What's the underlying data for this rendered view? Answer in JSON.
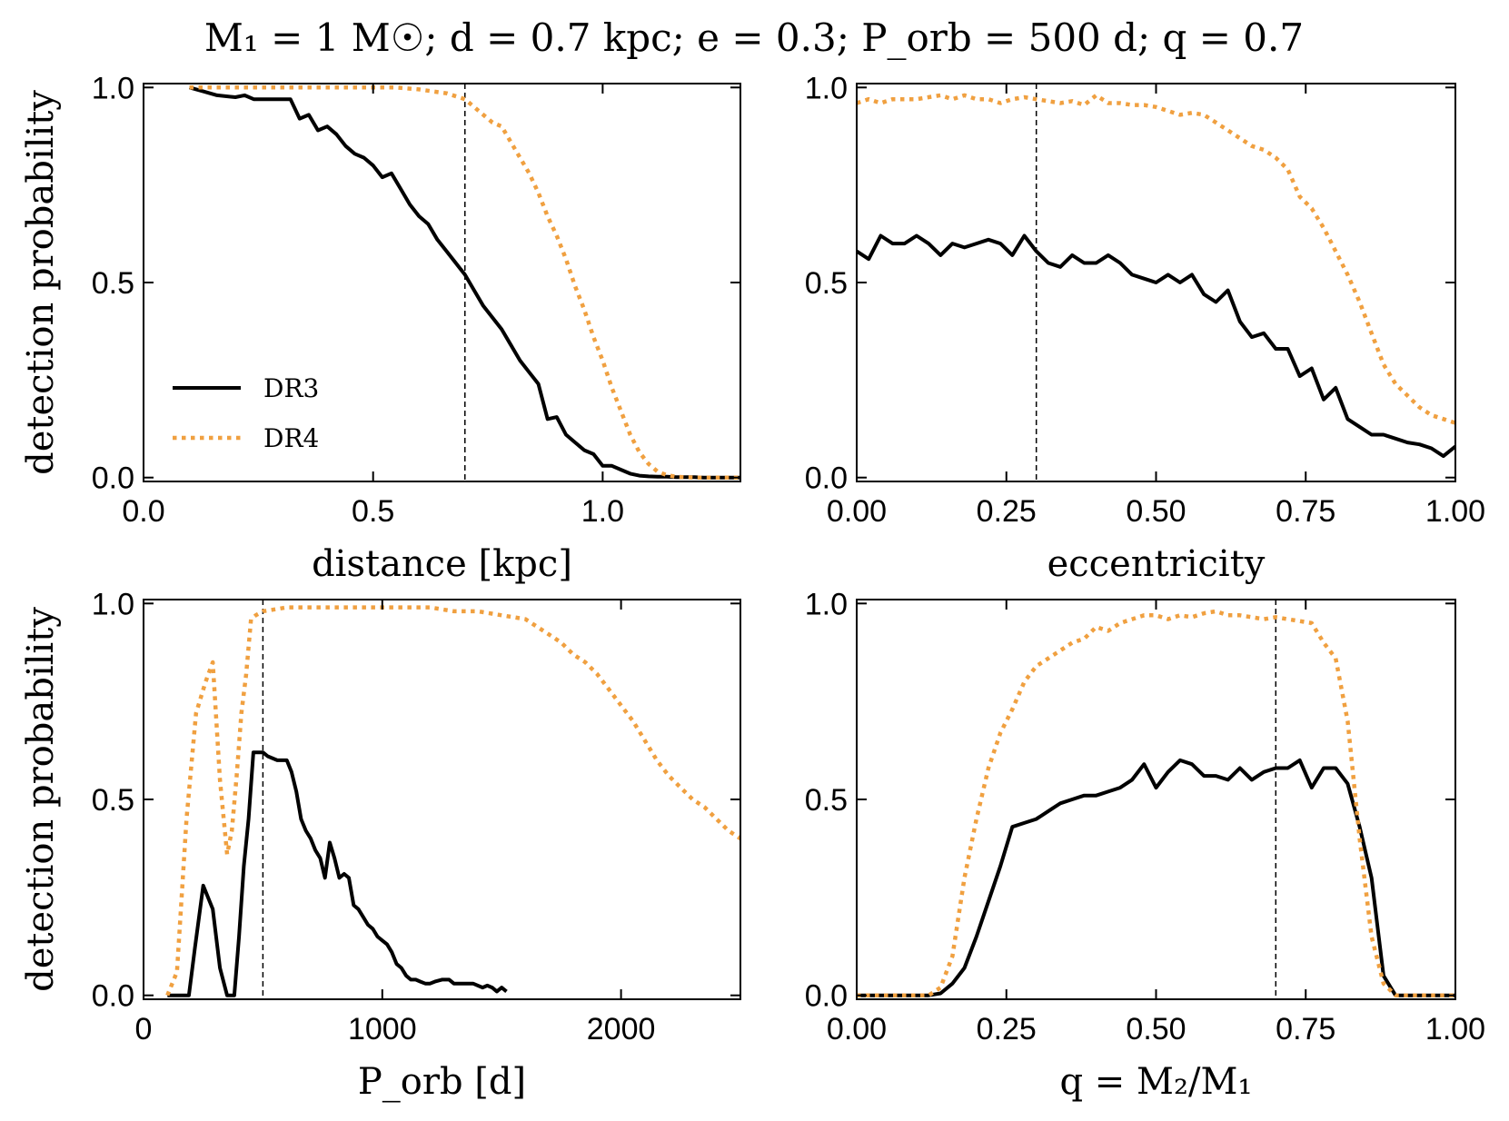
{
  "figure_title": "M₁ = 1 M☉;  d = 0.7 kpc;  e = 0.3;  P_orb = 500 d;  q = 0.7",
  "colors": {
    "dr3": "#000000",
    "dr4": "#f0a040",
    "marker": "#000000"
  },
  "legend": {
    "dr3": "DR3",
    "dr4": "DR4"
  },
  "chart_data": [
    {
      "type": "line",
      "xlabel": "distance [kpc]",
      "ylabel": "detection probability",
      "xlim": [
        0.0,
        1.3
      ],
      "ylim": [
        -0.01,
        1.01
      ],
      "xticks": [
        0.0,
        0.5,
        1.0
      ],
      "xtick_labels": [
        "0.0",
        "0.5",
        "1.0"
      ],
      "yticks": [
        0.0,
        0.5,
        1.0
      ],
      "ytick_labels": [
        "0.0",
        "0.5",
        "1.0"
      ],
      "vline": 0.7,
      "legend_location": "lower-left",
      "series": [
        {
          "name": "DR3",
          "style": "solid",
          "x": [
            0.1,
            0.13,
            0.16,
            0.2,
            0.22,
            0.24,
            0.26,
            0.28,
            0.3,
            0.32,
            0.34,
            0.36,
            0.38,
            0.4,
            0.42,
            0.44,
            0.46,
            0.48,
            0.5,
            0.52,
            0.54,
            0.56,
            0.58,
            0.6,
            0.62,
            0.64,
            0.66,
            0.68,
            0.7,
            0.72,
            0.74,
            0.76,
            0.78,
            0.8,
            0.82,
            0.84,
            0.86,
            0.88,
            0.9,
            0.92,
            0.94,
            0.96,
            0.98,
            1.0,
            1.02,
            1.04,
            1.06,
            1.08,
            1.1,
            1.12,
            1.14,
            1.16,
            1.18,
            1.2,
            1.22,
            1.24,
            1.26,
            1.28,
            1.3
          ],
          "values": [
            1.0,
            0.99,
            0.98,
            0.975,
            0.98,
            0.97,
            0.97,
            0.97,
            0.97,
            0.97,
            0.92,
            0.93,
            0.89,
            0.9,
            0.88,
            0.85,
            0.83,
            0.82,
            0.8,
            0.77,
            0.78,
            0.74,
            0.7,
            0.67,
            0.65,
            0.61,
            0.58,
            0.55,
            0.52,
            0.48,
            0.44,
            0.41,
            0.38,
            0.34,
            0.3,
            0.27,
            0.24,
            0.15,
            0.155,
            0.11,
            0.09,
            0.07,
            0.06,
            0.03,
            0.03,
            0.02,
            0.01,
            0.005,
            0.003,
            0.002,
            0.002,
            0.001,
            0.001,
            0.001,
            0.0,
            0.0,
            0.0,
            0.0,
            0.0
          ]
        },
        {
          "name": "DR4",
          "style": "dotted",
          "x": [
            0.1,
            0.2,
            0.3,
            0.4,
            0.5,
            0.55,
            0.6,
            0.63,
            0.66,
            0.7,
            0.72,
            0.74,
            0.76,
            0.78,
            0.8,
            0.82,
            0.84,
            0.86,
            0.88,
            0.9,
            0.92,
            0.94,
            0.96,
            0.98,
            1.0,
            1.02,
            1.04,
            1.06,
            1.08,
            1.1,
            1.12,
            1.14,
            1.16,
            1.18,
            1.2,
            1.25,
            1.3
          ],
          "values": [
            1.0,
            1.0,
            1.0,
            1.0,
            1.0,
            1.0,
            0.995,
            0.99,
            0.985,
            0.97,
            0.95,
            0.93,
            0.91,
            0.9,
            0.86,
            0.82,
            0.78,
            0.73,
            0.67,
            0.62,
            0.56,
            0.49,
            0.43,
            0.36,
            0.3,
            0.23,
            0.17,
            0.11,
            0.065,
            0.035,
            0.015,
            0.006,
            0.002,
            0.001,
            0.0,
            0.0,
            0.0
          ]
        }
      ]
    },
    {
      "type": "line",
      "xlabel": "eccentricity",
      "ylabel": "",
      "xlim": [
        0.0,
        1.0
      ],
      "ylim": [
        -0.01,
        1.01
      ],
      "xticks": [
        0.0,
        0.25,
        0.5,
        0.75,
        1.0
      ],
      "xtick_labels": [
        "0.00",
        "0.25",
        "0.50",
        "0.75",
        "1.00"
      ],
      "yticks": [
        0.0,
        0.5,
        1.0
      ],
      "ytick_labels": [
        "0.0",
        "0.5",
        "1.0"
      ],
      "vline": 0.3,
      "series": [
        {
          "name": "DR3",
          "style": "solid",
          "x": [
            0.0,
            0.02,
            0.04,
            0.06,
            0.08,
            0.1,
            0.12,
            0.14,
            0.16,
            0.18,
            0.2,
            0.22,
            0.24,
            0.26,
            0.28,
            0.3,
            0.32,
            0.34,
            0.36,
            0.38,
            0.4,
            0.42,
            0.44,
            0.46,
            0.48,
            0.5,
            0.52,
            0.54,
            0.56,
            0.58,
            0.6,
            0.62,
            0.64,
            0.66,
            0.68,
            0.7,
            0.72,
            0.74,
            0.76,
            0.78,
            0.8,
            0.82,
            0.84,
            0.86,
            0.88,
            0.9,
            0.92,
            0.94,
            0.96,
            0.98,
            1.0
          ],
          "values": [
            0.58,
            0.56,
            0.62,
            0.6,
            0.6,
            0.62,
            0.6,
            0.57,
            0.6,
            0.59,
            0.6,
            0.61,
            0.6,
            0.57,
            0.62,
            0.58,
            0.55,
            0.54,
            0.57,
            0.55,
            0.55,
            0.57,
            0.55,
            0.52,
            0.51,
            0.5,
            0.52,
            0.5,
            0.52,
            0.47,
            0.45,
            0.48,
            0.4,
            0.36,
            0.37,
            0.33,
            0.33,
            0.26,
            0.28,
            0.2,
            0.23,
            0.15,
            0.13,
            0.11,
            0.11,
            0.1,
            0.09,
            0.085,
            0.075,
            0.055,
            0.08
          ]
        },
        {
          "name": "DR4",
          "style": "dotted",
          "x": [
            0.0,
            0.02,
            0.04,
            0.06,
            0.08,
            0.1,
            0.12,
            0.14,
            0.16,
            0.18,
            0.2,
            0.22,
            0.24,
            0.26,
            0.28,
            0.3,
            0.32,
            0.34,
            0.36,
            0.38,
            0.4,
            0.42,
            0.44,
            0.46,
            0.48,
            0.5,
            0.52,
            0.54,
            0.56,
            0.58,
            0.6,
            0.62,
            0.64,
            0.66,
            0.68,
            0.7,
            0.72,
            0.74,
            0.76,
            0.78,
            0.8,
            0.82,
            0.84,
            0.86,
            0.88,
            0.9,
            0.92,
            0.94,
            0.96,
            0.98,
            1.0
          ],
          "values": [
            0.96,
            0.97,
            0.96,
            0.97,
            0.97,
            0.97,
            0.975,
            0.98,
            0.97,
            0.98,
            0.97,
            0.97,
            0.96,
            0.97,
            0.975,
            0.97,
            0.965,
            0.96,
            0.965,
            0.955,
            0.98,
            0.96,
            0.96,
            0.955,
            0.955,
            0.95,
            0.94,
            0.93,
            0.935,
            0.93,
            0.91,
            0.89,
            0.87,
            0.85,
            0.84,
            0.82,
            0.79,
            0.72,
            0.69,
            0.64,
            0.58,
            0.52,
            0.45,
            0.37,
            0.29,
            0.24,
            0.21,
            0.18,
            0.16,
            0.15,
            0.14
          ]
        }
      ]
    },
    {
      "type": "line",
      "xlabel": "P_orb [d]",
      "ylabel": "detection probability",
      "xlim": [
        0,
        2500
      ],
      "ylim": [
        -0.01,
        1.01
      ],
      "xticks": [
        0,
        1000,
        2000
      ],
      "xtick_labels": [
        "0",
        "1000",
        "2000"
      ],
      "yticks": [
        0.0,
        0.5,
        1.0
      ],
      "ytick_labels": [
        "0.0",
        "0.5",
        "1.0"
      ],
      "vline": 500,
      "series": [
        {
          "name": "DR3",
          "style": "solid",
          "x": [
            100,
            150,
            190,
            215,
            250,
            290,
            320,
            350,
            380,
            400,
            420,
            440,
            460,
            480,
            500,
            520,
            560,
            600,
            620,
            640,
            660,
            680,
            700,
            720,
            740,
            760,
            780,
            800,
            820,
            840,
            860,
            880,
            900,
            920,
            940,
            960,
            980,
            1000,
            1020,
            1040,
            1060,
            1080,
            1100,
            1120,
            1140,
            1160,
            1180,
            1200,
            1220,
            1250,
            1280,
            1300,
            1340,
            1380,
            1420,
            1440,
            1460,
            1480,
            1500,
            1520
          ],
          "values": [
            0.0,
            0.0,
            0.0,
            0.12,
            0.28,
            0.22,
            0.07,
            0.0,
            0.0,
            0.15,
            0.33,
            0.45,
            0.62,
            0.62,
            0.62,
            0.61,
            0.6,
            0.6,
            0.57,
            0.52,
            0.45,
            0.42,
            0.4,
            0.37,
            0.35,
            0.3,
            0.39,
            0.35,
            0.3,
            0.31,
            0.3,
            0.23,
            0.22,
            0.2,
            0.18,
            0.17,
            0.15,
            0.14,
            0.13,
            0.11,
            0.08,
            0.07,
            0.05,
            0.04,
            0.04,
            0.035,
            0.03,
            0.03,
            0.035,
            0.04,
            0.04,
            0.03,
            0.03,
            0.03,
            0.02,
            0.025,
            0.02,
            0.01,
            0.02,
            0.01
          ]
        },
        {
          "name": "DR4",
          "style": "dotted",
          "x": [
            100,
            140,
            180,
            220,
            260,
            290,
            320,
            350,
            370,
            390,
            410,
            430,
            450,
            470,
            500,
            550,
            600,
            700,
            800,
            900,
            1000,
            1100,
            1200,
            1300,
            1400,
            1500,
            1550,
            1600,
            1650,
            1700,
            1750,
            1800,
            1850,
            1900,
            1950,
            2000,
            2050,
            2100,
            2150,
            2200,
            2250,
            2300,
            2350,
            2400,
            2450,
            2500
          ],
          "values": [
            0.0,
            0.06,
            0.45,
            0.72,
            0.8,
            0.85,
            0.55,
            0.36,
            0.42,
            0.56,
            0.72,
            0.82,
            0.96,
            0.97,
            0.98,
            0.985,
            0.99,
            0.99,
            0.99,
            0.99,
            0.99,
            0.99,
            0.99,
            0.98,
            0.98,
            0.97,
            0.965,
            0.96,
            0.94,
            0.92,
            0.9,
            0.87,
            0.85,
            0.82,
            0.78,
            0.74,
            0.7,
            0.65,
            0.6,
            0.56,
            0.53,
            0.5,
            0.48,
            0.45,
            0.42,
            0.4
          ]
        }
      ]
    },
    {
      "type": "line",
      "xlabel": "q = M₂/M₁",
      "ylabel": "",
      "xlim": [
        0.0,
        1.0
      ],
      "ylim": [
        -0.01,
        1.01
      ],
      "xticks": [
        0.0,
        0.25,
        0.5,
        0.75,
        1.0
      ],
      "xtick_labels": [
        "0.00",
        "0.25",
        "0.50",
        "0.75",
        "1.00"
      ],
      "yticks": [
        0.0,
        0.5,
        1.0
      ],
      "ytick_labels": [
        "0.0",
        "0.5",
        "1.0"
      ],
      "vline": 0.7,
      "series": [
        {
          "name": "DR3",
          "style": "solid",
          "x": [
            0.0,
            0.04,
            0.08,
            0.12,
            0.14,
            0.16,
            0.18,
            0.2,
            0.22,
            0.24,
            0.26,
            0.28,
            0.3,
            0.32,
            0.34,
            0.36,
            0.38,
            0.4,
            0.42,
            0.44,
            0.46,
            0.48,
            0.5,
            0.52,
            0.54,
            0.56,
            0.58,
            0.6,
            0.62,
            0.64,
            0.66,
            0.68,
            0.7,
            0.72,
            0.74,
            0.76,
            0.78,
            0.8,
            0.82,
            0.84,
            0.86,
            0.88,
            0.9,
            0.92,
            0.94,
            0.96,
            0.98,
            1.0
          ],
          "values": [
            0.0,
            0.0,
            0.0,
            0.0,
            0.005,
            0.03,
            0.07,
            0.15,
            0.24,
            0.33,
            0.43,
            0.44,
            0.45,
            0.47,
            0.49,
            0.5,
            0.51,
            0.51,
            0.52,
            0.53,
            0.55,
            0.59,
            0.53,
            0.57,
            0.6,
            0.59,
            0.56,
            0.56,
            0.55,
            0.58,
            0.55,
            0.57,
            0.58,
            0.58,
            0.6,
            0.53,
            0.58,
            0.58,
            0.54,
            0.43,
            0.3,
            0.05,
            0.0,
            0.0,
            0.0,
            0.0,
            0.0,
            0.0
          ]
        },
        {
          "name": "DR4",
          "style": "dotted",
          "x": [
            0.0,
            0.04,
            0.08,
            0.12,
            0.14,
            0.16,
            0.18,
            0.2,
            0.22,
            0.24,
            0.26,
            0.28,
            0.3,
            0.32,
            0.34,
            0.36,
            0.38,
            0.4,
            0.42,
            0.44,
            0.46,
            0.48,
            0.5,
            0.52,
            0.54,
            0.56,
            0.58,
            0.6,
            0.62,
            0.64,
            0.66,
            0.68,
            0.7,
            0.72,
            0.74,
            0.76,
            0.78,
            0.8,
            0.82,
            0.84,
            0.86,
            0.88,
            0.9,
            0.92,
            0.94,
            0.96,
            0.98,
            1.0
          ],
          "values": [
            0.0,
            0.0,
            0.0,
            0.0,
            0.02,
            0.1,
            0.3,
            0.45,
            0.58,
            0.67,
            0.73,
            0.8,
            0.84,
            0.86,
            0.88,
            0.9,
            0.91,
            0.94,
            0.93,
            0.95,
            0.96,
            0.97,
            0.97,
            0.96,
            0.97,
            0.965,
            0.975,
            0.98,
            0.97,
            0.97,
            0.965,
            0.96,
            0.965,
            0.96,
            0.955,
            0.95,
            0.9,
            0.86,
            0.7,
            0.4,
            0.15,
            0.03,
            0.0,
            0.0,
            0.0,
            0.0,
            0.0,
            0.0
          ]
        }
      ]
    }
  ]
}
